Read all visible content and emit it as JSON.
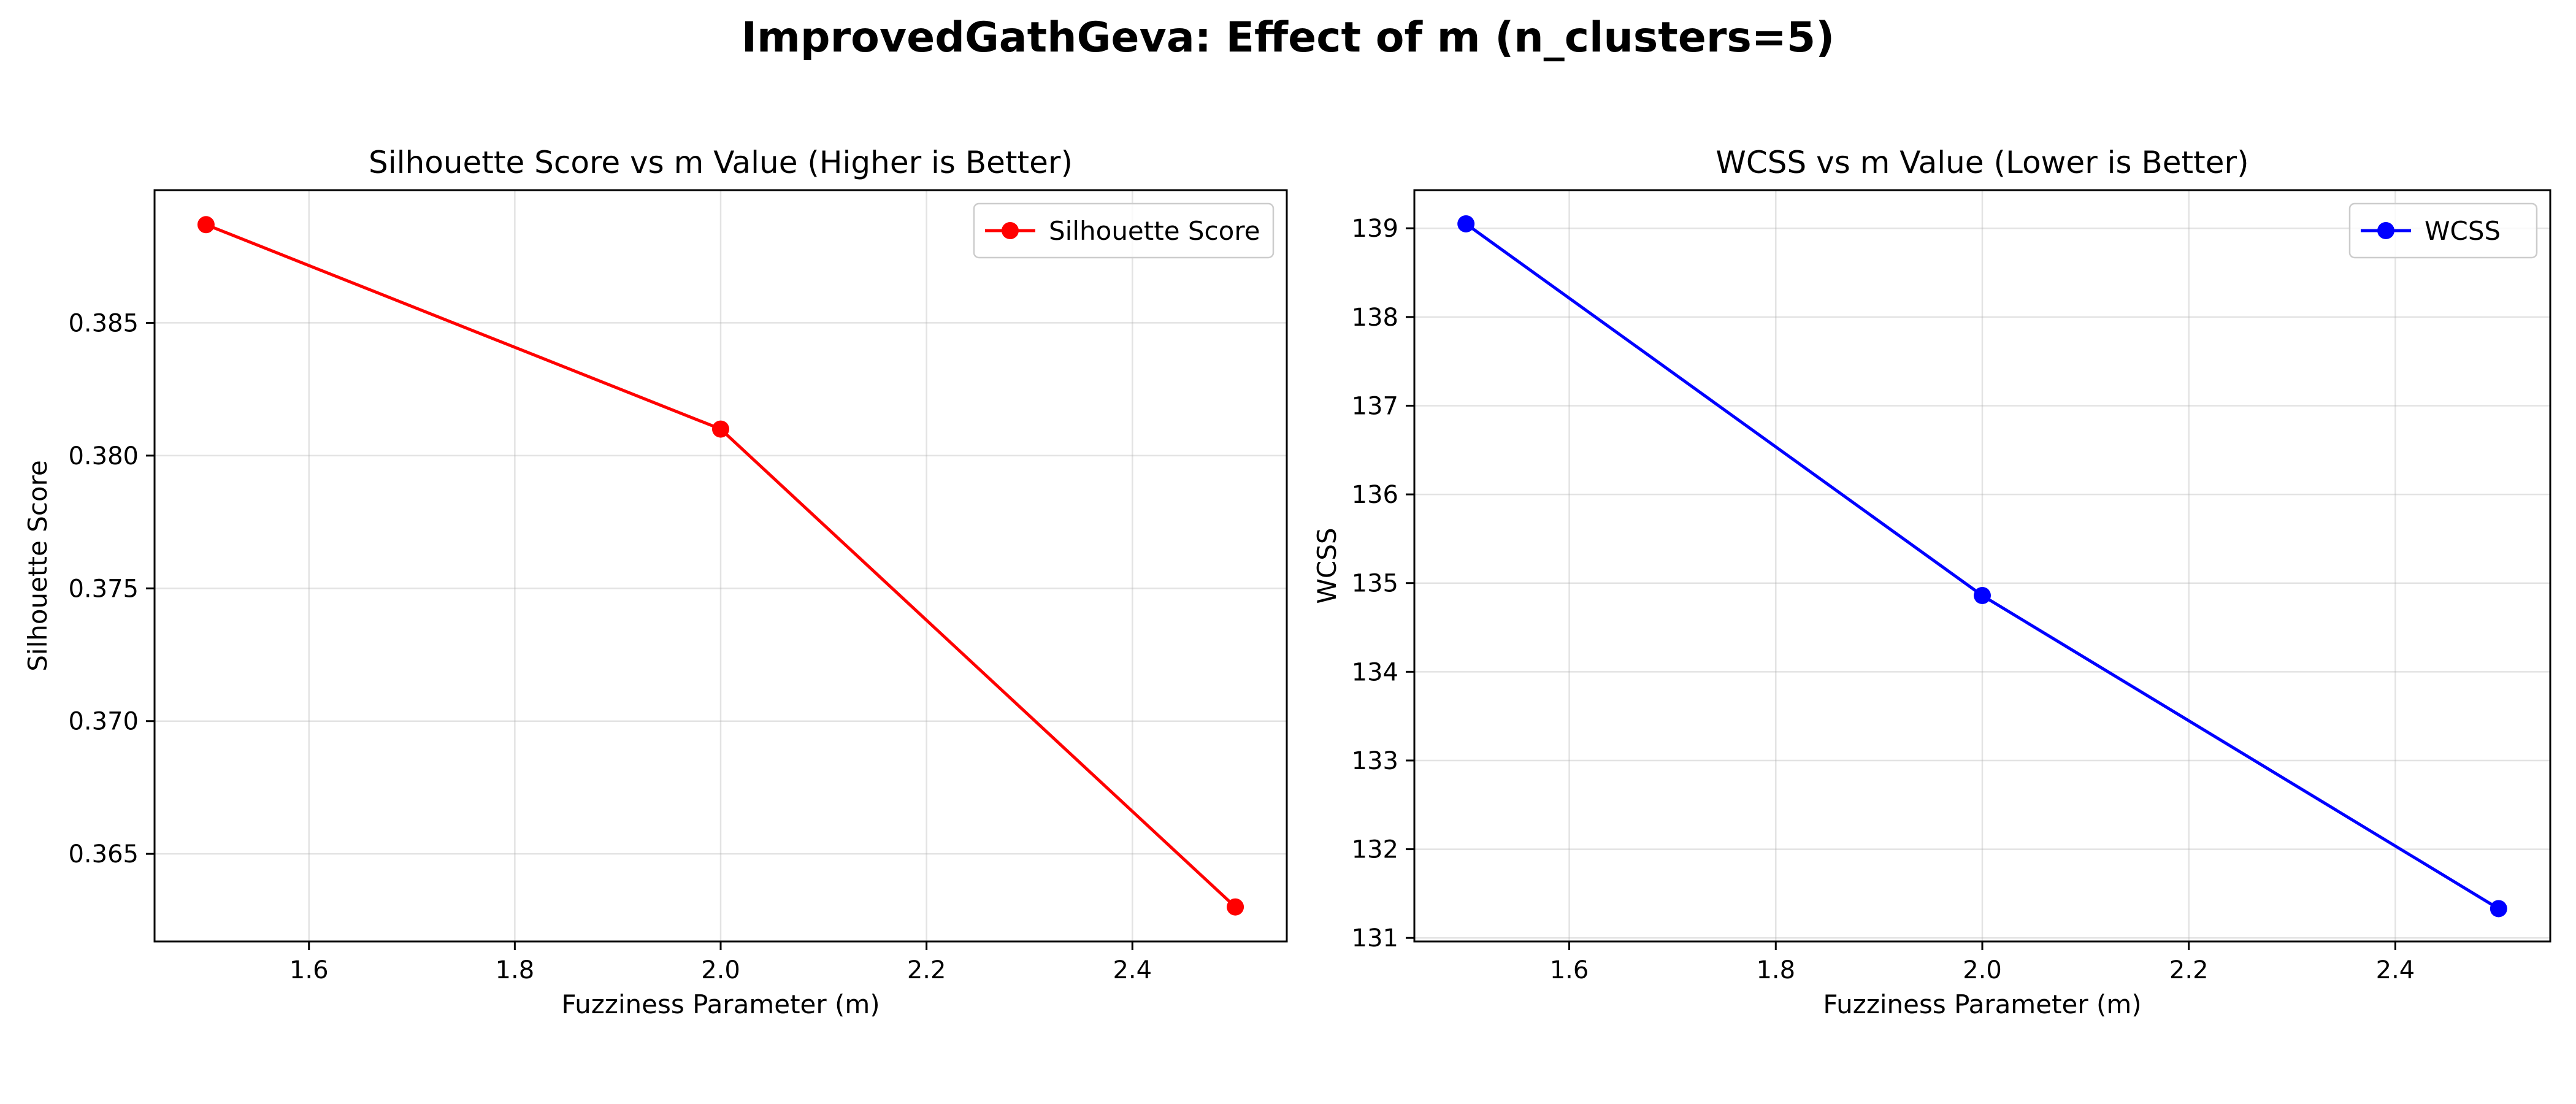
{
  "figure": {
    "suptitle": "ImprovedGathGeva: Effect of m (n_clusters=5)"
  },
  "chart_data": [
    {
      "type": "line",
      "title": "Silhouette Score vs m Value (Higher is Better)",
      "xlabel": "Fuzziness Parameter (m)",
      "ylabel": "Silhouette Score",
      "x": [
        1.5,
        2.0,
        2.5
      ],
      "series": [
        {
          "name": "Silhouette Score",
          "values": [
            0.3887,
            0.381,
            0.363
          ],
          "color": "#ff0000",
          "marker": "circle"
        }
      ],
      "xlim": [
        1.45,
        2.55
      ],
      "ylim": [
        0.3617,
        0.39
      ],
      "xticks": [
        1.6,
        1.8,
        2.0,
        2.2,
        2.4
      ],
      "xtick_labels": [
        "1.6",
        "1.8",
        "2.0",
        "2.2",
        "2.4"
      ],
      "yticks": [
        0.365,
        0.37,
        0.375,
        0.38,
        0.385
      ],
      "ytick_labels": [
        "0.365",
        "0.370",
        "0.375",
        "0.380",
        "0.385"
      ],
      "grid": true,
      "legend": "top-right"
    },
    {
      "type": "line",
      "title": "WCSS vs m Value (Lower is Better)",
      "xlabel": "Fuzziness Parameter (m)",
      "ylabel": "WCSS",
      "x": [
        1.5,
        2.0,
        2.5
      ],
      "series": [
        {
          "name": "WCSS",
          "values": [
            139.05,
            134.86,
            131.33
          ],
          "color": "#0000ff",
          "marker": "circle"
        }
      ],
      "xlim": [
        1.45,
        2.55
      ],
      "ylim": [
        130.96,
        139.43
      ],
      "xticks": [
        1.6,
        1.8,
        2.0,
        2.2,
        2.4
      ],
      "xtick_labels": [
        "1.6",
        "1.8",
        "2.0",
        "2.2",
        "2.4"
      ],
      "yticks": [
        131,
        132,
        133,
        134,
        135,
        136,
        137,
        138,
        139
      ],
      "ytick_labels": [
        "131",
        "132",
        "133",
        "134",
        "135",
        "136",
        "137",
        "138",
        "139"
      ],
      "grid": true,
      "legend": "top-right"
    }
  ]
}
